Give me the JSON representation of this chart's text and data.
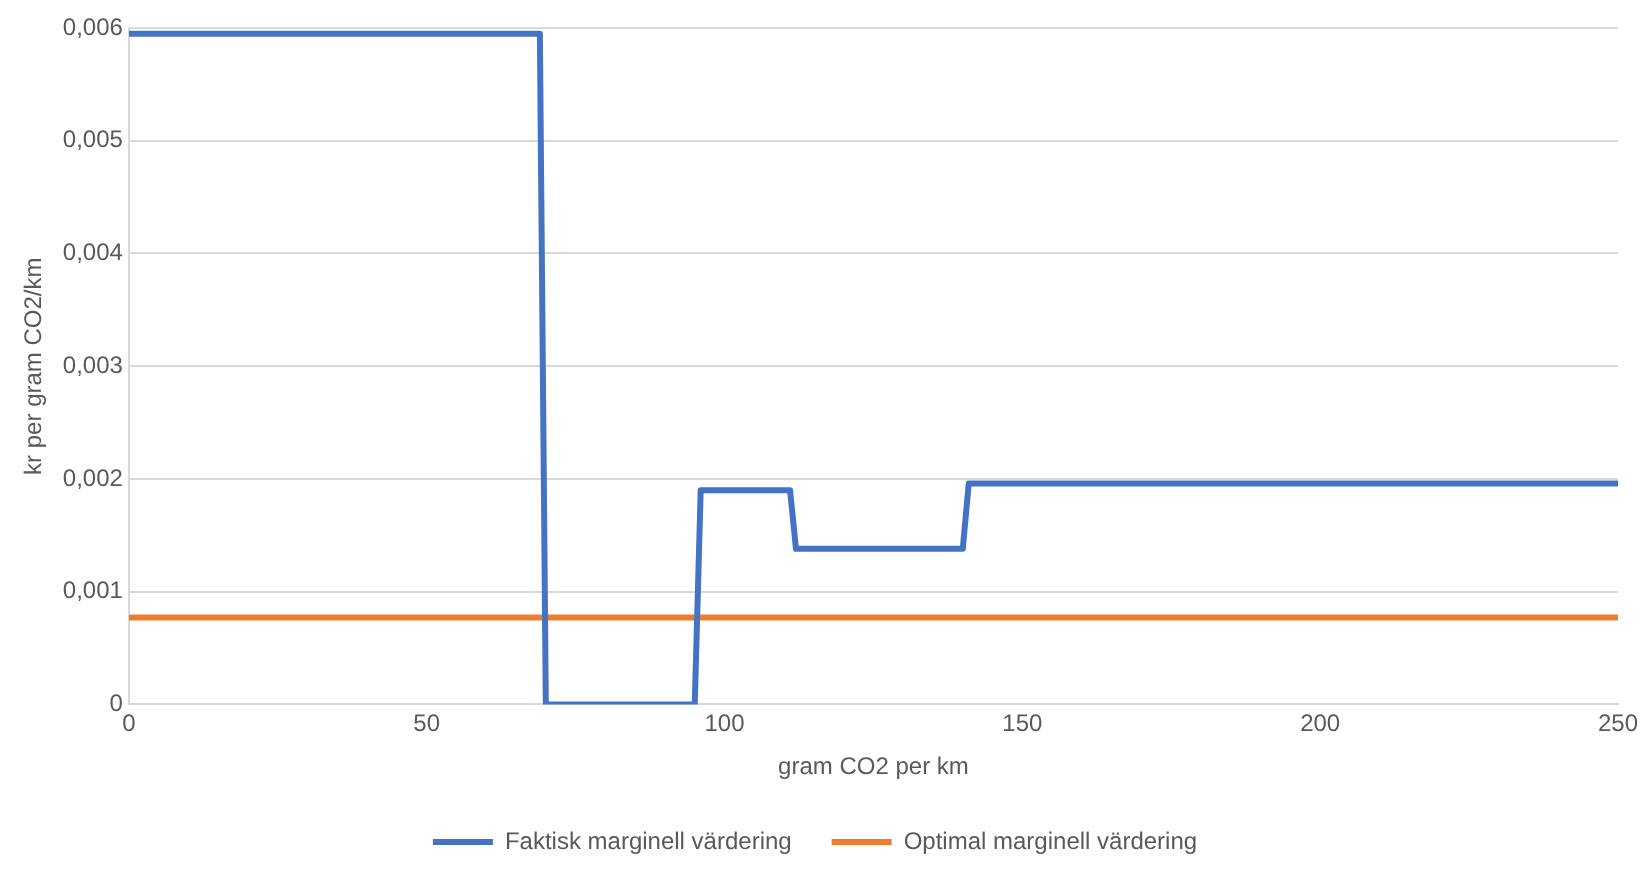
{
  "chart_data": {
    "type": "line",
    "xlabel": "gram CO2 per km",
    "ylabel": "kr per gram CO2/km",
    "xlim": [
      0,
      250
    ],
    "xticks": [
      0,
      50,
      100,
      150,
      200,
      250
    ],
    "ylim": [
      0,
      0.006
    ],
    "yticks": [
      {
        "value": 0,
        "label": "0"
      },
      {
        "value": 0.001,
        "label": "0,001"
      },
      {
        "value": 0.002,
        "label": "0,002"
      },
      {
        "value": 0.003,
        "label": "0,003"
      },
      {
        "value": 0.004,
        "label": "0,004"
      },
      {
        "value": 0.005,
        "label": "0,005"
      },
      {
        "value": 0.006,
        "label": "0,006"
      }
    ],
    "grid": "y",
    "legend": "bottom",
    "marker": "none",
    "line_style": "solid",
    "series": [
      {
        "name": "Faktisk marginell värdering",
        "color": "#4472c4",
        "x": [
          0,
          69,
          70,
          95,
          96,
          111,
          112,
          140,
          141,
          250
        ],
        "values": [
          0.00595,
          0.00595,
          0,
          0,
          0.0019,
          0.0019,
          0.00138,
          0.00138,
          0.00196,
          0.00196
        ]
      },
      {
        "name": "Optimal marginell värdering",
        "color": "#ed7d31",
        "x": [
          0,
          250
        ],
        "values": [
          0.00077,
          0.00077
        ]
      }
    ]
  }
}
